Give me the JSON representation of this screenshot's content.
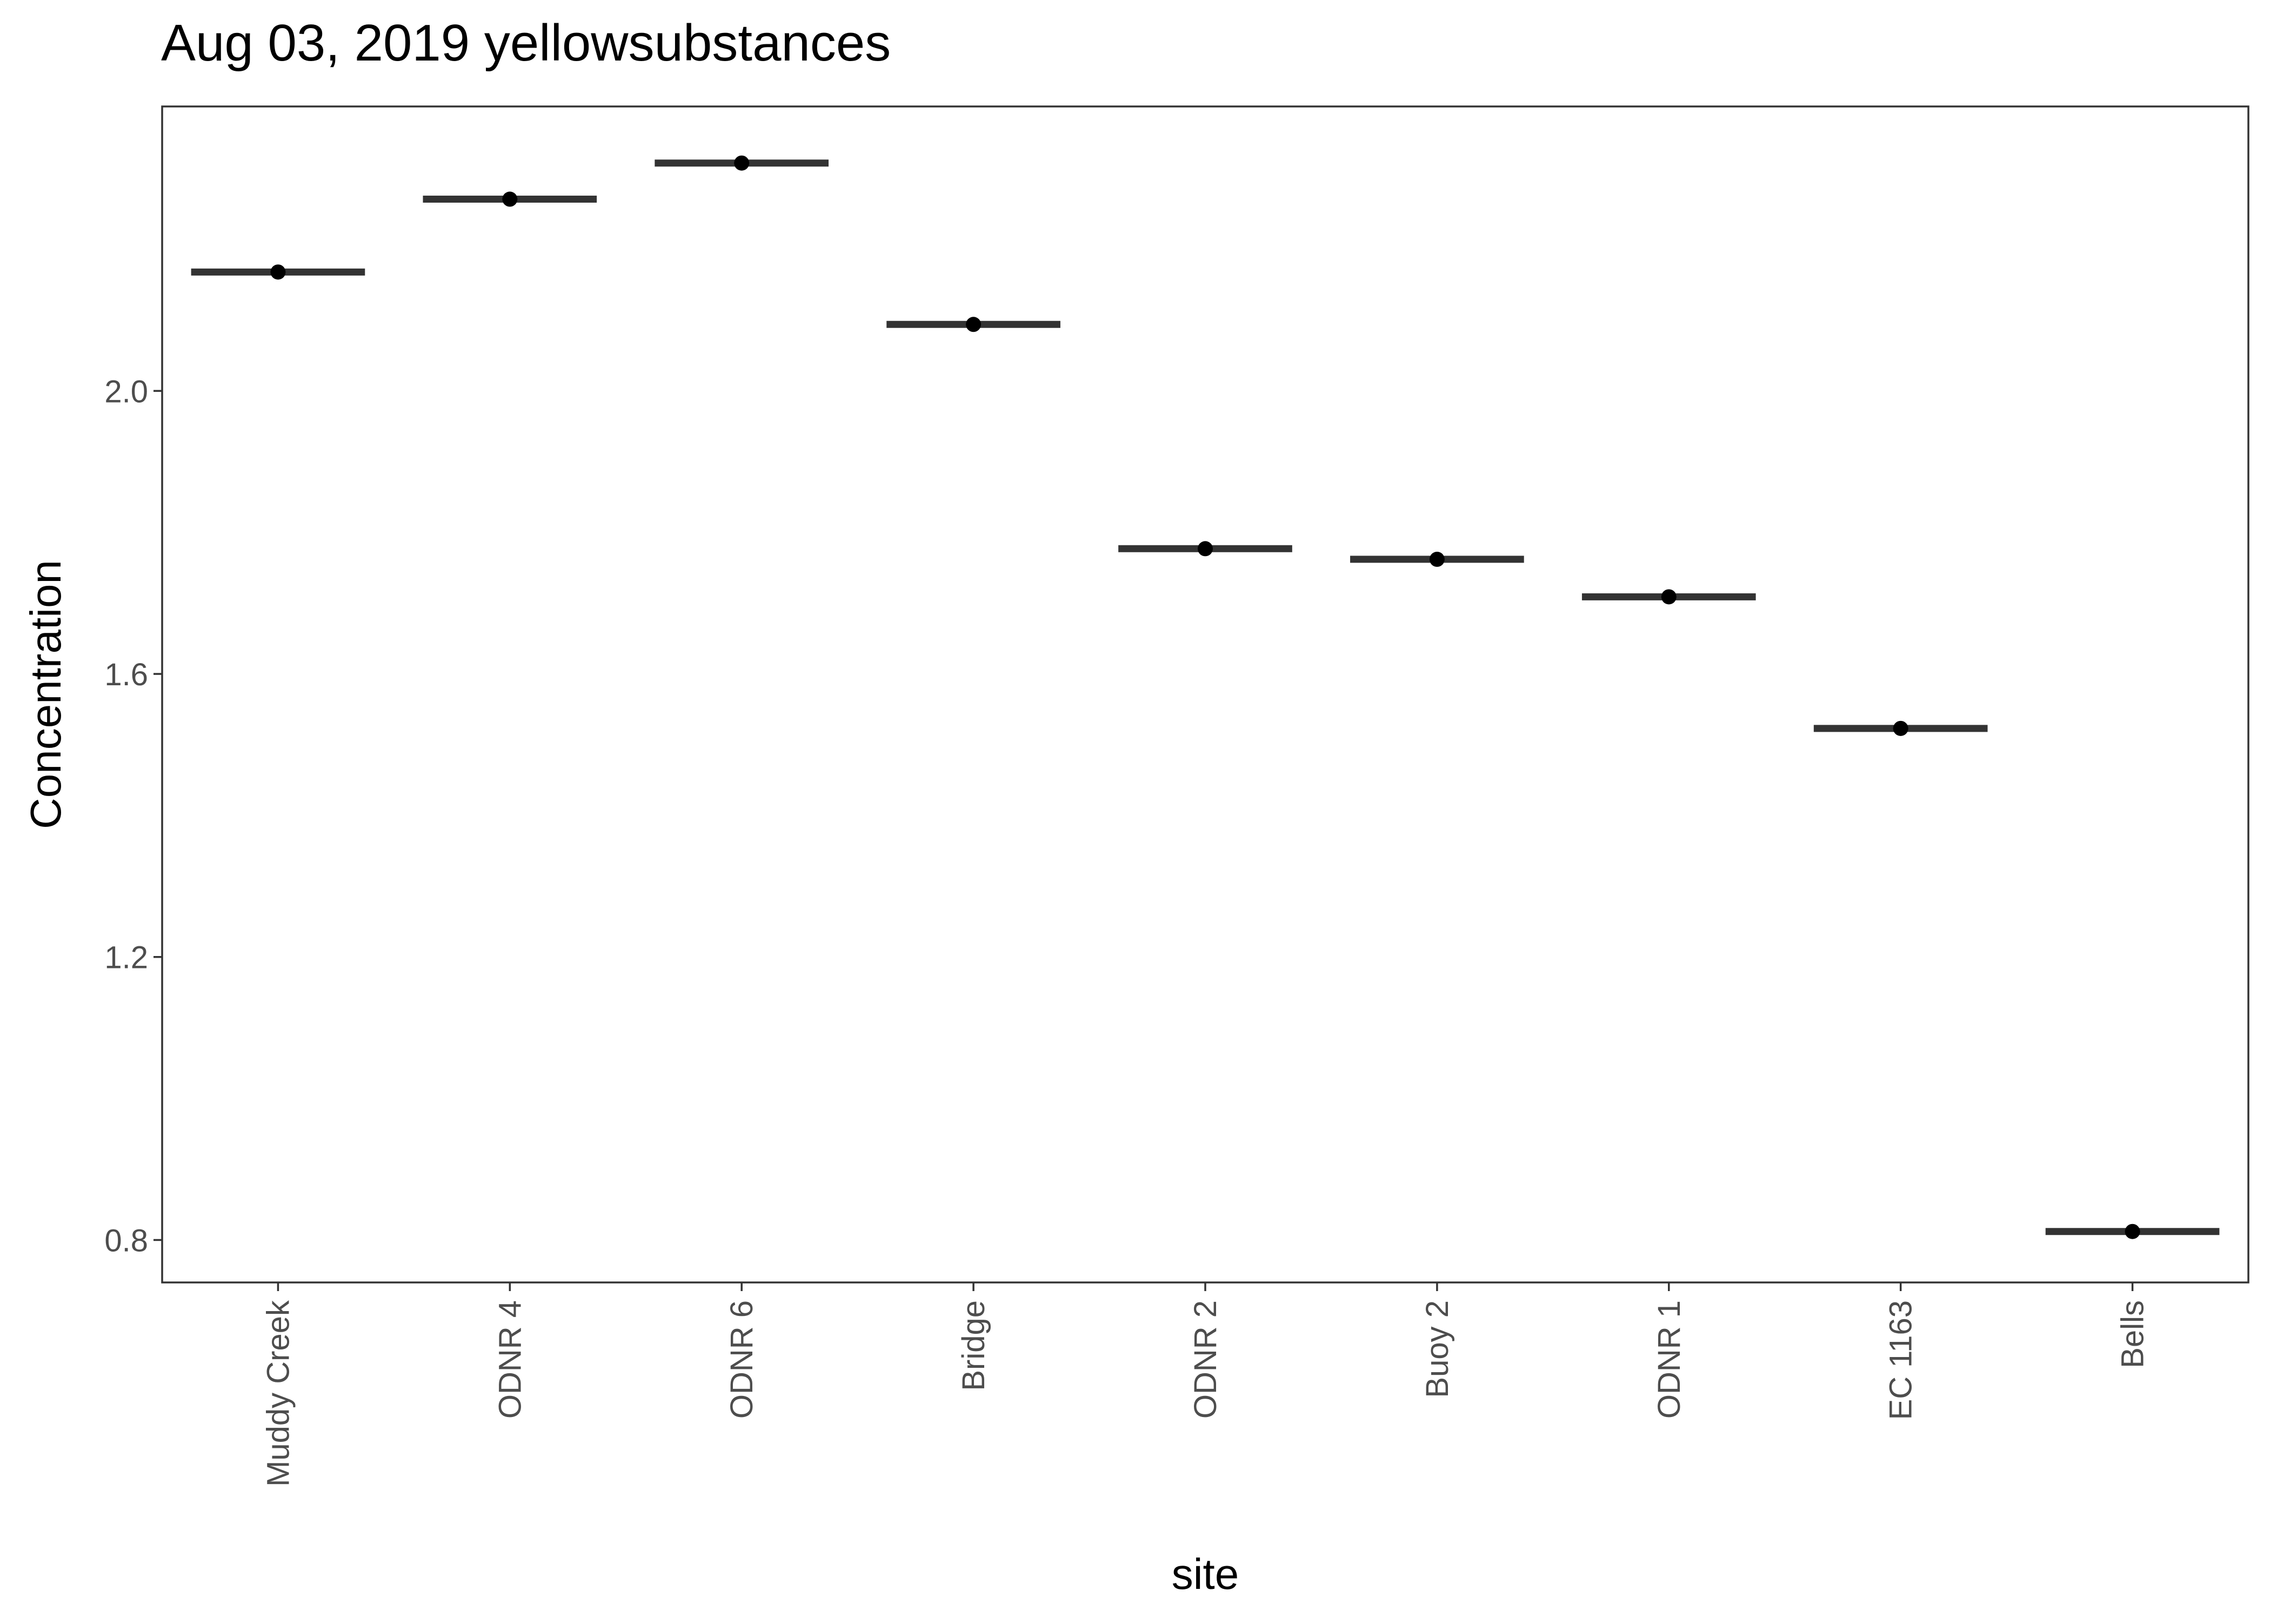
{
  "chart_data": {
    "type": "boxplot",
    "title": "Aug 03, 2019 yellowsubstances",
    "xlabel": "site",
    "ylabel": "Concentration",
    "categories": [
      "Muddy Creek",
      "ODNR 4",
      "ODNR 6",
      "Bridge",
      "ODNR 2",
      "Buoy 2",
      "ODNR 1",
      "EC 1163",
      "Bells"
    ],
    "values": [
      2.168,
      2.271,
      2.322,
      2.094,
      1.777,
      1.762,
      1.709,
      1.523,
      0.812
    ],
    "ylim": [
      0.74,
      2.402
    ],
    "yticks": [
      0.8,
      1.2,
      1.6,
      2.0
    ],
    "ytick_labels": [
      "0.8",
      "1.2",
      "1.6",
      "2.0"
    ],
    "grid": false,
    "legend": "none",
    "colors": {
      "median_line": "#333333",
      "point": "#000000",
      "panel_border": "#333333",
      "axis_text": "#4d4d4d",
      "title_text": "#000000"
    }
  }
}
